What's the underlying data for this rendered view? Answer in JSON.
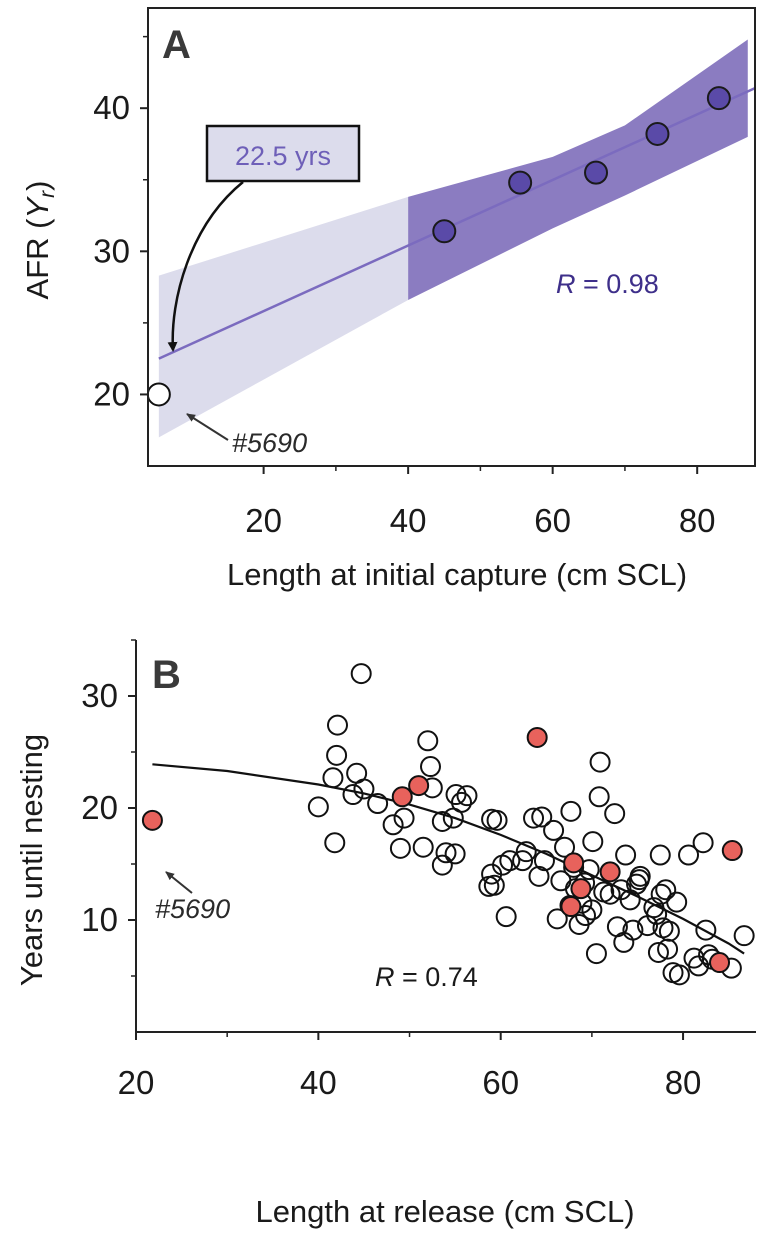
{
  "chart_data": [
    {
      "type": "scatter",
      "panel_label": "A",
      "xlabel": "Length at initial capture (cm SCL)",
      "ylabel_main": "AFR (",
      "ylabel_var": "Y",
      "ylabel_sub": "r",
      "ylabel_close": ")",
      "xlim": [
        4,
        88
      ],
      "ylim": [
        15,
        47
      ],
      "xticks": [
        20,
        40,
        60,
        80
      ],
      "yticks": [
        20,
        30,
        40
      ],
      "points": [
        {
          "x": 45,
          "y": 31.4
        },
        {
          "x": 55.5,
          "y": 34.8
        },
        {
          "x": 66,
          "y": 35.5
        },
        {
          "x": 74.5,
          "y": 38.2
        },
        {
          "x": 83,
          "y": 40.7
        }
      ],
      "open_point": {
        "x": 5.5,
        "y": 20,
        "label": "#5690"
      },
      "fit_line": {
        "x": [
          5.5,
          88
        ],
        "y": [
          22.5,
          41.4
        ]
      },
      "band_extrapolated": {
        "x": [
          5.5,
          40
        ],
        "lower": [
          17.0,
          26.6
        ],
        "upper": [
          28.3,
          33.8
        ]
      },
      "band_observed": {
        "x": [
          40,
          60,
          70,
          87
        ],
        "lower": [
          26.6,
          31.6,
          33.9,
          38.0
        ],
        "upper": [
          33.8,
          36.6,
          38.8,
          44.8
        ]
      },
      "callout": {
        "text": "22.5 yrs",
        "x": 5.5,
        "y": 22.5
      },
      "r_label_var": "R",
      "r_label_value": " = 0.98",
      "colors": {
        "fill_dark": "#8b7cc1",
        "fill_light": "#dcdcec",
        "point": "#5a4aa8",
        "line": "#7b6bbf",
        "r_text": "#3e2f8a"
      }
    },
    {
      "type": "scatter",
      "panel_label": "B",
      "xlabel": "Length at release (cm SCL)",
      "ylabel": "Years until nesting",
      "xlim": [
        20,
        88
      ],
      "ylim": [
        0,
        35
      ],
      "xticks": [
        20,
        40,
        60,
        80
      ],
      "yticks": [
        10,
        20,
        30
      ],
      "yticks_minor": [
        5,
        15,
        25,
        35
      ],
      "points_open": [
        [
          40,
          20.1
        ],
        [
          41.6,
          22.7
        ],
        [
          41.8,
          16.9
        ],
        [
          42,
          24.7
        ],
        [
          42.1,
          27.4
        ],
        [
          43.8,
          21.2
        ],
        [
          44.2,
          23.1
        ],
        [
          44.7,
          32
        ],
        [
          45,
          21.7
        ],
        [
          46.5,
          20.4
        ],
        [
          48.2,
          18.5
        ],
        [
          49,
          16.4
        ],
        [
          49.4,
          19.1
        ],
        [
          51.5,
          16.5
        ],
        [
          52,
          26
        ],
        [
          52.3,
          23.7
        ],
        [
          52.5,
          21.8
        ],
        [
          53.6,
          14.9
        ],
        [
          53.6,
          18.8
        ],
        [
          54,
          16
        ],
        [
          54.8,
          19.1
        ],
        [
          55,
          15.9
        ],
        [
          55.1,
          21.2
        ],
        [
          55.7,
          20.5
        ],
        [
          56.3,
          21.1
        ],
        [
          58.7,
          13
        ],
        [
          59,
          14.1
        ],
        [
          59,
          19
        ],
        [
          59.3,
          13.1
        ],
        [
          59.6,
          18.9
        ],
        [
          60.2,
          14.9
        ],
        [
          60.6,
          10.3
        ],
        [
          61,
          15.3
        ],
        [
          62.4,
          15.3
        ],
        [
          62.8,
          16.1
        ],
        [
          63.6,
          19.1
        ],
        [
          64.2,
          13.9
        ],
        [
          64.5,
          19.2
        ],
        [
          64.8,
          15.3
        ],
        [
          65.8,
          18
        ],
        [
          66.2,
          10.1
        ],
        [
          66.6,
          13.5
        ],
        [
          67,
          16.5
        ],
        [
          67.6,
          11.3
        ],
        [
          67.7,
          19.7
        ],
        [
          68,
          14.7
        ],
        [
          68.2,
          12.8
        ],
        [
          68.6,
          9.6
        ],
        [
          68.9,
          11.5
        ],
        [
          69.2,
          13.3
        ],
        [
          69.3,
          10.4
        ],
        [
          69.7,
          14.5
        ],
        [
          70,
          10.9
        ],
        [
          70.1,
          17
        ],
        [
          70.5,
          7
        ],
        [
          70.8,
          21
        ],
        [
          70.9,
          24.1
        ],
        [
          71.3,
          12.5
        ],
        [
          72,
          12.3
        ],
        [
          72.5,
          19.5
        ],
        [
          72.8,
          9.4
        ],
        [
          73.2,
          12.7
        ],
        [
          73.5,
          8
        ],
        [
          73.7,
          15.8
        ],
        [
          74.2,
          11.8
        ],
        [
          74.5,
          9.1
        ],
        [
          74.9,
          13.2
        ],
        [
          75.2,
          13.6
        ],
        [
          75.3,
          13.9
        ],
        [
          76.1,
          9.5
        ],
        [
          76.8,
          11.1
        ],
        [
          77.1,
          10.5
        ],
        [
          77.3,
          7.1
        ],
        [
          77.5,
          15.8
        ],
        [
          77.6,
          12.3
        ],
        [
          77.8,
          9.3
        ],
        [
          78.1,
          12.7
        ],
        [
          78.3,
          7.4
        ],
        [
          78.5,
          9
        ],
        [
          78.9,
          5.3
        ],
        [
          79.3,
          11.6
        ],
        [
          79.6,
          5.1
        ],
        [
          80.6,
          15.8
        ],
        [
          81.2,
          6.6
        ],
        [
          81.7,
          5.9
        ],
        [
          82.2,
          16.9
        ],
        [
          82.5,
          9.1
        ],
        [
          82.8,
          6.9
        ],
        [
          83.2,
          6.5
        ],
        [
          85.3,
          5.7
        ],
        [
          86.7,
          8.6
        ]
      ],
      "points_red": [
        [
          21.8,
          18.9
        ],
        [
          49.2,
          21
        ],
        [
          51,
          22
        ],
        [
          64,
          26.3
        ],
        [
          68,
          15.1
        ],
        [
          67.7,
          11.2
        ],
        [
          68.8,
          12.8
        ],
        [
          72,
          14.3
        ],
        [
          85.4,
          16.2
        ],
        [
          84,
          6.2
        ]
      ],
      "open_point_label": "#5690",
      "fit_curve": {
        "x": [
          21.8,
          30,
          40,
          45,
          50,
          55,
          60,
          65,
          70,
          75,
          80,
          85,
          86.7
        ],
        "y": [
          23.9,
          23.3,
          22.1,
          21.3,
          20.3,
          19.1,
          17.6,
          15.9,
          14.0,
          12.1,
          10.1,
          7.9,
          7.0
        ]
      },
      "r_label_var": "R",
      "r_label_value": " = 0.74",
      "colors": {
        "red": "#e8625c",
        "open_stroke": "#111111"
      }
    }
  ]
}
